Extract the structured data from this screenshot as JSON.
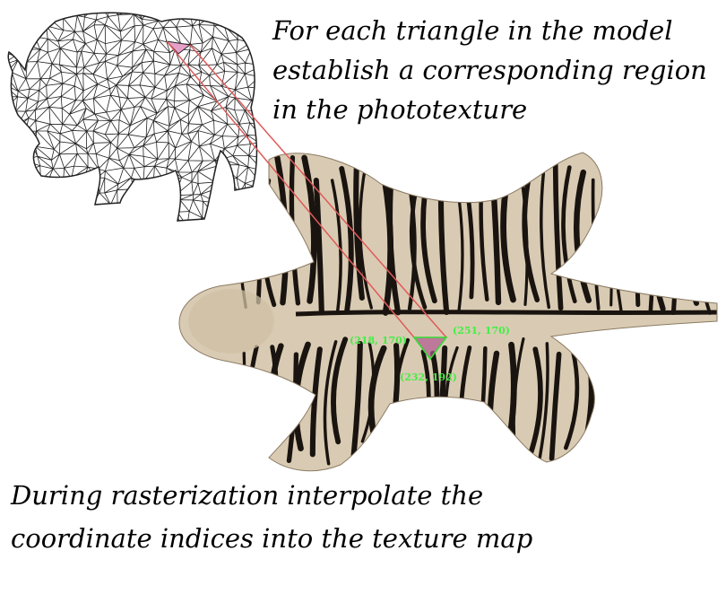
{
  "top_caption": {
    "line1": "For each triangle in the model",
    "line2": "establish a corresponding region",
    "line3": "in the phototexture"
  },
  "bottom_caption": {
    "line1": "During rasterization interpolate the",
    "line2": "coordinate indices into the texture map"
  },
  "texture_triangle": {
    "vertex_a_label": "(218, 170)",
    "vertex_b_label": "(251, 170)",
    "vertex_c_label": "(232, 192)"
  },
  "colors": {
    "mesh_stroke": "#222222",
    "highlight_fill": "#e6a0c8",
    "connector_line": "#e05a5a",
    "uv_triangle": "#33dd33",
    "uv_label": "#44ee44",
    "pelt_base": "#d9cbb3",
    "pelt_stripe": "#1a1410"
  }
}
